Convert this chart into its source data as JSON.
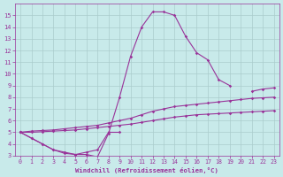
{
  "xlabel": "Windchill (Refroidissement éolien,°C)",
  "bg_color": "#c8eaea",
  "grid_color": "#aacccc",
  "line_color": "#993399",
  "xlim": [
    -0.5,
    23.5
  ],
  "ylim": [
    3.0,
    16.0
  ],
  "xticks": [
    0,
    1,
    2,
    3,
    4,
    5,
    6,
    7,
    8,
    9,
    10,
    11,
    12,
    13,
    14,
    15,
    16,
    17,
    18,
    19,
    20,
    21,
    22,
    23
  ],
  "yticks": [
    3,
    4,
    5,
    6,
    7,
    8,
    9,
    10,
    11,
    12,
    13,
    14,
    15
  ],
  "curve1_x": [
    0,
    1,
    2,
    3,
    4,
    5,
    6,
    7,
    8,
    9,
    10,
    11,
    12,
    13,
    14,
    15,
    16,
    17,
    18,
    19
  ],
  "curve1_y": [
    5.0,
    4.5,
    4.0,
    3.5,
    3.2,
    3.1,
    3.1,
    2.9,
    4.9,
    8.0,
    11.5,
    14.0,
    15.3,
    15.3,
    15.0,
    13.2,
    11.8,
    11.2,
    9.5,
    9.0
  ],
  "curve2_x": [
    0,
    1,
    2,
    3,
    4,
    5,
    6,
    7,
    8,
    9,
    21,
    22,
    23
  ],
  "curve2_y": [
    5.0,
    4.5,
    4.0,
    3.5,
    3.3,
    3.1,
    3.3,
    3.5,
    5.0,
    5.0,
    8.5,
    8.7,
    8.8
  ],
  "curve3_x": [
    0,
    1,
    2,
    3,
    4,
    5,
    6,
    7,
    8,
    9,
    10,
    11,
    12,
    13,
    14,
    15,
    16,
    17,
    18,
    19,
    20,
    21,
    22,
    23
  ],
  "curve3_y": [
    5.0,
    5.1,
    5.15,
    5.2,
    5.3,
    5.4,
    5.5,
    5.6,
    5.8,
    6.0,
    6.2,
    6.5,
    6.8,
    7.0,
    7.2,
    7.3,
    7.4,
    7.5,
    7.6,
    7.7,
    7.8,
    7.9,
    7.95,
    8.0
  ],
  "curve4_x": [
    0,
    1,
    2,
    3,
    4,
    5,
    6,
    7,
    8,
    9,
    10,
    11,
    12,
    13,
    14,
    15,
    16,
    17,
    18,
    19,
    20,
    21,
    22,
    23
  ],
  "curve4_y": [
    5.0,
    5.0,
    5.05,
    5.1,
    5.15,
    5.2,
    5.3,
    5.4,
    5.5,
    5.6,
    5.7,
    5.85,
    6.0,
    6.15,
    6.3,
    6.4,
    6.5,
    6.55,
    6.6,
    6.65,
    6.7,
    6.75,
    6.8,
    6.85
  ]
}
